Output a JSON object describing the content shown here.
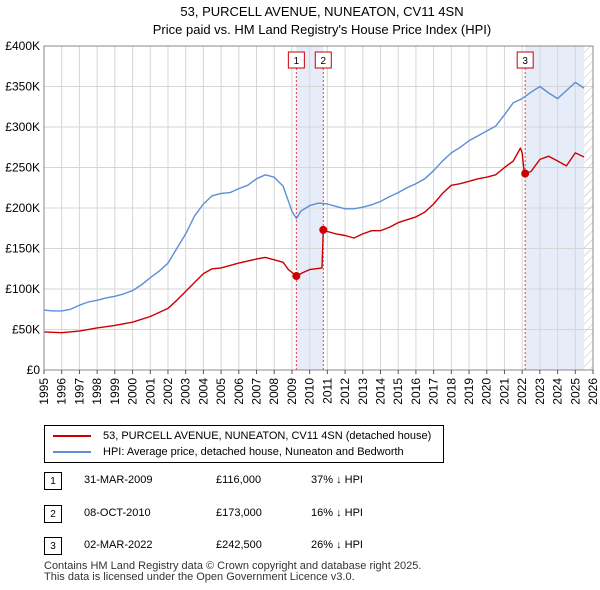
{
  "chart_data": {
    "type": "line",
    "title": "53, PURCELL AVENUE, NUNEATON, CV11 4SN",
    "subtitle": "Price paid vs. HM Land Registry's House Price Index (HPI)",
    "xlabel": "",
    "ylabel": "",
    "xlim": [
      1995,
      2026
    ],
    "ylim": [
      0,
      400000
    ],
    "x_ticks": [
      "1995",
      "1996",
      "1997",
      "1998",
      "1999",
      "2000",
      "2001",
      "2002",
      "2003",
      "2004",
      "2005",
      "2006",
      "2007",
      "2008",
      "2009",
      "2010",
      "2011",
      "2012",
      "2013",
      "2014",
      "2015",
      "2016",
      "2017",
      "2018",
      "2019",
      "2020",
      "2021",
      "2022",
      "2023",
      "2024",
      "2025",
      "2026"
    ],
    "y_ticks": [
      {
        "value": 0,
        "label": "£0"
      },
      {
        "value": 50000,
        "label": "£50K"
      },
      {
        "value": 100000,
        "label": "£100K"
      },
      {
        "value": 150000,
        "label": "£150K"
      },
      {
        "value": 200000,
        "label": "£200K"
      },
      {
        "value": 250000,
        "label": "£250K"
      },
      {
        "value": 300000,
        "label": "£300K"
      },
      {
        "value": 350000,
        "label": "£350K"
      },
      {
        "value": 400000,
        "label": "£400K"
      }
    ],
    "grid": true,
    "series": [
      {
        "name": "53, PURCELL AVENUE, NUNEATON, CV11 4SN (detached house)",
        "color": "#cc0000",
        "points": [
          [
            1995.0,
            47000
          ],
          [
            1996.0,
            46000
          ],
          [
            1997.0,
            48000
          ],
          [
            1998.0,
            52000
          ],
          [
            1999.0,
            55000
          ],
          [
            2000.0,
            59000
          ],
          [
            2001.0,
            66000
          ],
          [
            2002.0,
            76000
          ],
          [
            2002.5,
            86000
          ],
          [
            2003.0,
            97000
          ],
          [
            2003.5,
            108000
          ],
          [
            2004.0,
            119000
          ],
          [
            2004.5,
            125000
          ],
          [
            2005.0,
            126000
          ],
          [
            2006.0,
            132000
          ],
          [
            2007.0,
            137000
          ],
          [
            2007.5,
            139000
          ],
          [
            2008.0,
            136000
          ],
          [
            2008.5,
            133000
          ],
          [
            2008.8,
            124000
          ],
          [
            2009.25,
            116000
          ],
          [
            2009.6,
            120000
          ],
          [
            2010.0,
            124000
          ],
          [
            2010.7,
            126000
          ],
          [
            2010.77,
            173000
          ],
          [
            2011.0,
            171000
          ],
          [
            2011.5,
            168000
          ],
          [
            2012.0,
            166000
          ],
          [
            2012.5,
            163000
          ],
          [
            2013.0,
            168000
          ],
          [
            2013.5,
            172000
          ],
          [
            2014.0,
            172000
          ],
          [
            2014.5,
            176000
          ],
          [
            2015.0,
            182000
          ],
          [
            2016.0,
            189000
          ],
          [
            2016.5,
            195000
          ],
          [
            2017.0,
            205000
          ],
          [
            2017.5,
            218000
          ],
          [
            2018.0,
            228000
          ],
          [
            2018.5,
            230000
          ],
          [
            2019.0,
            233000
          ],
          [
            2019.5,
            236000
          ],
          [
            2020.0,
            238000
          ],
          [
            2020.5,
            241000
          ],
          [
            2021.0,
            250000
          ],
          [
            2021.5,
            258000
          ],
          [
            2021.9,
            274000
          ],
          [
            2022.0,
            268000
          ],
          [
            2022.12,
            242500
          ],
          [
            2022.5,
            245000
          ],
          [
            2023.0,
            260000
          ],
          [
            2023.5,
            264000
          ],
          [
            2024.0,
            258000
          ],
          [
            2024.5,
            252000
          ],
          [
            2025.0,
            268000
          ],
          [
            2025.5,
            263000
          ]
        ]
      },
      {
        "name": "HPI: Average price, detached house, Nuneaton and Bedworth",
        "color": "#5b8ed6",
        "points": [
          [
            1995.0,
            74000
          ],
          [
            1995.5,
            73000
          ],
          [
            1996.0,
            73000
          ],
          [
            1996.5,
            75000
          ],
          [
            1997.0,
            80000
          ],
          [
            1997.5,
            84000
          ],
          [
            1998.0,
            86000
          ],
          [
            1998.5,
            89000
          ],
          [
            1999.0,
            91000
          ],
          [
            1999.5,
            94000
          ],
          [
            2000.0,
            98000
          ],
          [
            2000.5,
            105000
          ],
          [
            2001.0,
            114000
          ],
          [
            2001.5,
            122000
          ],
          [
            2002.0,
            132000
          ],
          [
            2002.5,
            150000
          ],
          [
            2003.0,
            168000
          ],
          [
            2003.5,
            190000
          ],
          [
            2004.0,
            205000
          ],
          [
            2004.5,
            215000
          ],
          [
            2005.0,
            218000
          ],
          [
            2005.5,
            219000
          ],
          [
            2006.0,
            224000
          ],
          [
            2006.5,
            228000
          ],
          [
            2007.0,
            236000
          ],
          [
            2007.5,
            241000
          ],
          [
            2008.0,
            238000
          ],
          [
            2008.5,
            227000
          ],
          [
            2009.0,
            196000
          ],
          [
            2009.25,
            187000
          ],
          [
            2009.5,
            196000
          ],
          [
            2010.0,
            203000
          ],
          [
            2010.5,
            206000
          ],
          [
            2011.0,
            205000
          ],
          [
            2011.5,
            202000
          ],
          [
            2012.0,
            199000
          ],
          [
            2012.5,
            199000
          ],
          [
            2013.0,
            201000
          ],
          [
            2013.5,
            204000
          ],
          [
            2014.0,
            208000
          ],
          [
            2014.5,
            214000
          ],
          [
            2015.0,
            219000
          ],
          [
            2015.5,
            225000
          ],
          [
            2016.0,
            230000
          ],
          [
            2016.5,
            236000
          ],
          [
            2017.0,
            246000
          ],
          [
            2017.5,
            258000
          ],
          [
            2018.0,
            268000
          ],
          [
            2018.5,
            275000
          ],
          [
            2019.0,
            283000
          ],
          [
            2019.5,
            289000
          ],
          [
            2020.0,
            295000
          ],
          [
            2020.5,
            301000
          ],
          [
            2021.0,
            315000
          ],
          [
            2021.5,
            330000
          ],
          [
            2022.0,
            335000
          ],
          [
            2022.5,
            343000
          ],
          [
            2023.0,
            350000
          ],
          [
            2023.5,
            342000
          ],
          [
            2024.0,
            335000
          ],
          [
            2024.5,
            345000
          ],
          [
            2025.0,
            355000
          ],
          [
            2025.5,
            348000
          ]
        ]
      }
    ],
    "sales": [
      {
        "label": "1",
        "x": 2009.25,
        "value": 116000
      },
      {
        "label": "2",
        "x": 2010.77,
        "value": 173000
      },
      {
        "label": "3",
        "x": 2022.17,
        "value": 242500
      }
    ],
    "shaded_periods": [
      [
        2009.25,
        2010.77
      ],
      [
        2022.17,
        2025.5
      ]
    ],
    "hatch_from": 2025.5
  },
  "legend": {
    "property_label": "53, PURCELL AVENUE, NUNEATON, CV11 4SN (detached house)",
    "property_color": "#cc0000",
    "hpi_label": "HPI: Average price, detached house, Nuneaton and Bedworth",
    "hpi_color": "#5b8ed6"
  },
  "transactions": [
    {
      "num": "1",
      "date": "31-MAR-2009",
      "price": "£116,000",
      "hpi": "37% ↓ HPI"
    },
    {
      "num": "2",
      "date": "08-OCT-2010",
      "price": "£173,000",
      "hpi": "16% ↓ HPI"
    },
    {
      "num": "3",
      "date": "02-MAR-2022",
      "price": "£242,500",
      "hpi": "26% ↓ HPI"
    }
  ],
  "footer": {
    "line1": "Contains HM Land Registry data © Crown copyright and database right 2025.",
    "line2": "This data is licensed under the Open Government Licence v3.0."
  }
}
